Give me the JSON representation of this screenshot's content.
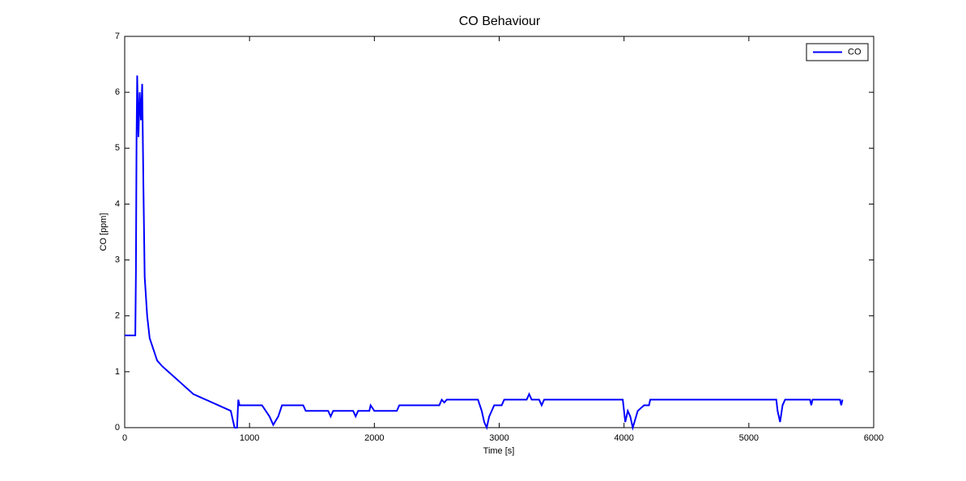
{
  "chart_data": {
    "type": "line",
    "title": "CO Behaviour",
    "xlabel": "Time [s]",
    "ylabel": "CO [ppm]",
    "x": [
      0,
      85,
      90,
      95,
      100,
      110,
      120,
      130,
      140,
      150,
      160,
      180,
      200,
      230,
      260,
      300,
      350,
      400,
      450,
      500,
      550,
      650,
      750,
      850,
      880,
      900,
      910,
      920,
      1100,
      1160,
      1190,
      1230,
      1260,
      1430,
      1450,
      1630,
      1650,
      1670,
      1830,
      1850,
      1870,
      1960,
      1970,
      2000,
      2180,
      2200,
      2520,
      2540,
      2560,
      2580,
      2830,
      2860,
      2880,
      2900,
      2920,
      2960,
      3020,
      3040,
      3220,
      3240,
      3260,
      3320,
      3340,
      3360,
      3990,
      4010,
      4030,
      4050,
      4070,
      4110,
      4160,
      4200,
      4210,
      5220,
      5230,
      5250,
      5270,
      5290,
      5490,
      5500,
      5510,
      5730,
      5740,
      5750
    ],
    "series": [
      {
        "name": "CO",
        "color": "#0000ff",
        "values": [
          1.65,
          1.65,
          2.8,
          5.2,
          6.3,
          5.2,
          6.0,
          5.5,
          6.15,
          4.3,
          2.7,
          2.0,
          1.6,
          1.4,
          1.2,
          1.1,
          1.0,
          0.9,
          0.8,
          0.7,
          0.6,
          0.5,
          0.4,
          0.3,
          0.0,
          0.0,
          0.5,
          0.4,
          0.4,
          0.2,
          0.05,
          0.2,
          0.4,
          0.4,
          0.3,
          0.3,
          0.2,
          0.3,
          0.3,
          0.2,
          0.3,
          0.3,
          0.4,
          0.3,
          0.3,
          0.4,
          0.4,
          0.5,
          0.45,
          0.5,
          0.5,
          0.3,
          0.1,
          0.0,
          0.2,
          0.4,
          0.4,
          0.5,
          0.5,
          0.6,
          0.5,
          0.5,
          0.4,
          0.5,
          0.5,
          0.1,
          0.3,
          0.2,
          0.0,
          0.3,
          0.4,
          0.4,
          0.5,
          0.5,
          0.3,
          0.1,
          0.4,
          0.5,
          0.5,
          0.4,
          0.5,
          0.5,
          0.4,
          0.5
        ]
      }
    ],
    "xlim": [
      0,
      6000
    ],
    "xticks": [
      0,
      1000,
      2000,
      3000,
      4000,
      5000,
      6000
    ],
    "ylim": [
      0,
      7
    ],
    "yticks": [
      0,
      1,
      2,
      3,
      4,
      5,
      6,
      7
    ],
    "grid": false,
    "legend": "upper right"
  }
}
